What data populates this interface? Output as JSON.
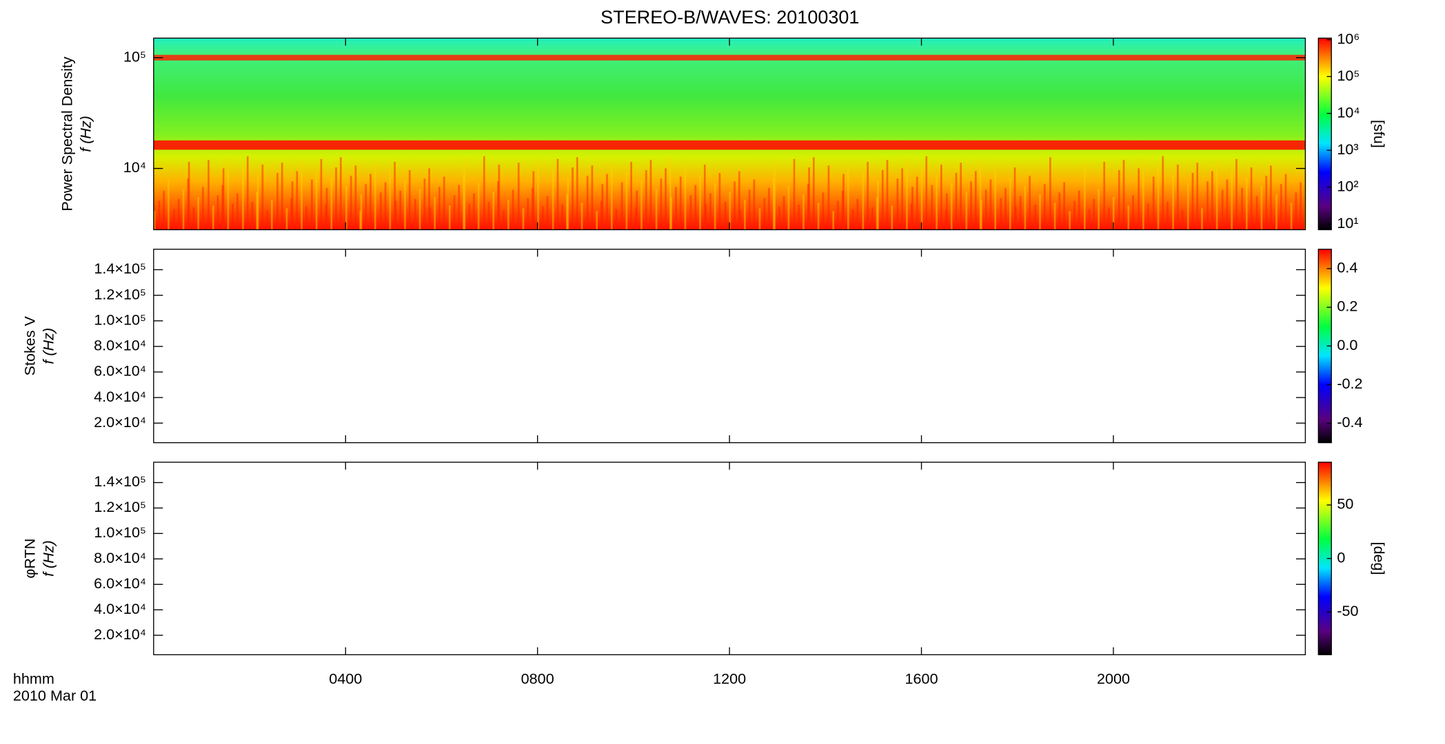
{
  "title": "STEREO-B/WAVES: 20100301",
  "x_label": "hhmm",
  "date_label": "2010 Mar 01",
  "xlim": [
    0,
    24
  ],
  "xticks": [
    {
      "value": 4,
      "label": "0400"
    },
    {
      "value": 8,
      "label": "0800"
    },
    {
      "value": 12,
      "label": "1200"
    },
    {
      "value": 16,
      "label": "1600"
    },
    {
      "value": 20,
      "label": "2000"
    }
  ],
  "chart_data": [
    {
      "type": "heatmap",
      "ylabel": "Power Spectral Density",
      "ylabel2": "f (Hz)",
      "log_y": true,
      "ylim": [
        2800,
        150000
      ],
      "yticks": [
        {
          "value": 10000,
          "label": "10⁴"
        },
        {
          "value": 100000,
          "label": "10⁵"
        }
      ],
      "colorbar_label": "[sfu]",
      "colorbar_log": true,
      "clim": [
        7,
        1100000
      ],
      "cticks": [
        {
          "value": 10,
          "label": "10¹"
        },
        {
          "value": 100,
          "label": "10²"
        },
        {
          "value": 1000,
          "label": "10³"
        },
        {
          "value": 10000,
          "label": "10⁴"
        },
        {
          "value": 100000,
          "label": "10⁵"
        },
        {
          "value": 1000000,
          "label": "10⁶"
        }
      ]
    },
    {
      "type": "heatmap",
      "ylabel": "Stokes V",
      "ylabel2": "f (Hz)",
      "log_y": false,
      "ylim": [
        4700,
        156000
      ],
      "yticks": [
        {
          "value": 20000,
          "label": "2.0×10⁴"
        },
        {
          "value": 40000,
          "label": "4.0×10⁴"
        },
        {
          "value": 60000,
          "label": "6.0×10⁴"
        },
        {
          "value": 80000,
          "label": "8.0×10⁴"
        },
        {
          "value": 100000,
          "label": "1.0×10⁵"
        },
        {
          "value": 120000,
          "label": "1.2×10⁵"
        },
        {
          "value": 140000,
          "label": "1.4×10⁵"
        }
      ],
      "colorbar_log": false,
      "clim": [
        -0.5,
        0.5
      ],
      "cticks": [
        -0.4,
        -0.2,
        {
          "value": 0,
          "label": "0.0"
        },
        0.2,
        0.4
      ]
    },
    {
      "type": "heatmap",
      "ylabel": "φRTN",
      "ylabel2": "f (Hz)",
      "log_y": false,
      "ylim": [
        4700,
        156000
      ],
      "yticks": [
        {
          "value": 20000,
          "label": "2.0×10⁴"
        },
        {
          "value": 40000,
          "label": "4.0×10⁴"
        },
        {
          "value": 60000,
          "label": "6.0×10⁴"
        },
        {
          "value": 80000,
          "label": "8.0×10⁴"
        },
        {
          "value": 100000,
          "label": "1.0×10⁵"
        },
        {
          "value": 120000,
          "label": "1.2×10⁵"
        },
        {
          "value": 140000,
          "label": "1.4×10⁵"
        }
      ],
      "colorbar_label": "[deg]",
      "colorbar_log": false,
      "clim": [
        -90,
        90
      ],
      "cticks": [
        -50,
        0,
        50
      ]
    }
  ]
}
